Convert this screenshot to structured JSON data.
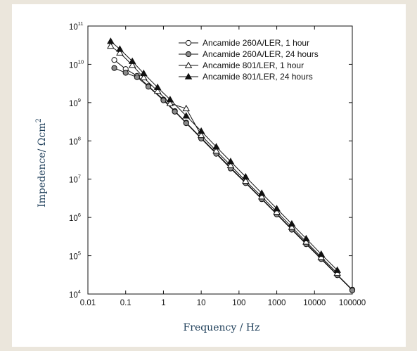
{
  "chart_data": {
    "type": "scatter",
    "xscale": "log",
    "yscale": "log",
    "xlim": [
      0.01,
      100000
    ],
    "ylim": [
      10000,
      100000000000
    ],
    "xlabel": "Frequency / Hz",
    "ylabel": "Impedence/ Ωcm",
    "ylabel_sup": "2",
    "x_ticks": [
      "0.01",
      "0.1",
      "1",
      "10",
      "100",
      "1000",
      "10000",
      "100000"
    ],
    "y_ticks": [
      {
        "base": "10",
        "exp": "4"
      },
      {
        "base": "10",
        "exp": "5"
      },
      {
        "base": "10",
        "exp": "6"
      },
      {
        "base": "10",
        "exp": "7"
      },
      {
        "base": "10",
        "exp": "8"
      },
      {
        "base": "10",
        "exp": "9"
      },
      {
        "base": "10",
        "exp": "10"
      },
      {
        "base": "10",
        "exp": "11"
      }
    ],
    "legend_position": "top-right",
    "series": [
      {
        "name": "Ancamide 260A/LER, 1 hour",
        "marker": "open-circle",
        "x": [
          0.05,
          0.1,
          0.2,
          0.4,
          1,
          2,
          4,
          10,
          25,
          60,
          150,
          400,
          1000,
          2500,
          6000,
          15000,
          40000,
          100000
        ],
        "y": [
          13000000000,
          7500000000,
          5000000000,
          2700000000,
          1200000000,
          600000000,
          300000000,
          120000000,
          48000000,
          20000000,
          8200000,
          3100000,
          1250000,
          500000,
          210000,
          85000,
          32000,
          13000
        ]
      },
      {
        "name": "Ancamide 260A/LER, 24 hours",
        "marker": "hatched-circle",
        "x": [
          0.05,
          0.1,
          0.2,
          0.4,
          1,
          2,
          4,
          10,
          25,
          60,
          150,
          400,
          1000,
          2500,
          6000,
          15000,
          40000,
          100000
        ],
        "y": [
          8000000000,
          6000000000,
          4600000000,
          2600000000,
          1150000000,
          580000000,
          290000000,
          115000000,
          46000000,
          19000000,
          7900000,
          3000000,
          1200000,
          480000,
          200000,
          82000,
          31000,
          12500
        ]
      },
      {
        "name": "Ancamide 801/LER, 1 hour",
        "marker": "open-triangle",
        "x": [
          0.04,
          0.07,
          0.15,
          0.3,
          0.7,
          1.5,
          4,
          10,
          25,
          60,
          150,
          400,
          1000,
          2500,
          6000,
          15000,
          40000
        ],
        "y": [
          30000000000,
          20000000000,
          9500000000,
          4500000000,
          2000000000,
          950000000,
          700000000,
          140000000,
          55000000,
          23000000,
          9000000,
          3500000,
          1400000,
          560000,
          230000,
          92000,
          35000
        ]
      },
      {
        "name": "Ancamide 801/LER, 24 hours",
        "marker": "filled-triangle",
        "x": [
          0.04,
          0.07,
          0.15,
          0.3,
          0.7,
          1.5,
          4,
          10,
          25,
          60,
          150,
          400,
          1000,
          2500,
          6000,
          15000,
          40000
        ],
        "y": [
          40000000000,
          25000000000,
          12000000000,
          5800000000,
          2500000000,
          1200000000,
          450000000,
          180000000,
          70000000,
          29000000,
          11500000,
          4300000,
          1700000,
          680000,
          280000,
          110000,
          42000
        ]
      }
    ]
  }
}
